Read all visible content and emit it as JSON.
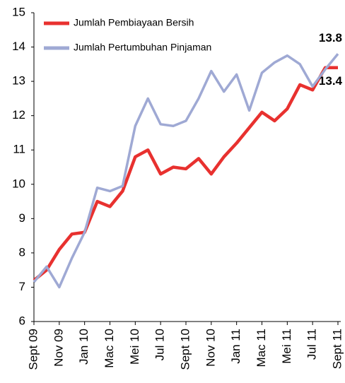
{
  "chart_data": {
    "type": "line",
    "categories": [
      "Sept 09",
      null,
      "Nov 09",
      null,
      "Jan 10",
      null,
      "Mac 10",
      null,
      "Mei 10",
      null,
      "Jul 10",
      null,
      "Sept 10",
      null,
      "Nov 10",
      null,
      "Jan 11",
      null,
      "Mac 11",
      null,
      "Mei 11",
      null,
      "Jul 11",
      null,
      "Sept 11"
    ],
    "series": [
      {
        "name": "Jumlah Pembiayaan Bersih",
        "color": "#e8312f",
        "label_color": "#e8312f",
        "values": [
          7.2,
          7.5,
          8.1,
          8.55,
          8.6,
          9.5,
          9.35,
          9.8,
          10.8,
          11.0,
          10.3,
          10.5,
          10.45,
          10.75,
          10.3,
          10.8,
          11.2,
          11.65,
          12.1,
          11.85,
          12.2,
          12.9,
          12.75,
          13.4,
          13.4
        ]
      },
      {
        "name": "Jumlah Pertumbuhan Pinjaman",
        "color": "#9fa9d4",
        "label_color": "#3a4f9b",
        "values": [
          7.15,
          7.6,
          7.0,
          7.85,
          8.6,
          9.9,
          9.8,
          9.95,
          11.7,
          12.5,
          11.75,
          11.7,
          11.85,
          12.5,
          13.3,
          12.7,
          13.2,
          12.15,
          13.25,
          13.55,
          13.75,
          13.5,
          12.85,
          13.35,
          13.8
        ]
      }
    ],
    "ylim": [
      6,
      15
    ],
    "yticks": [
      6,
      7,
      8,
      9,
      10,
      11,
      12,
      13,
      14,
      15
    ],
    "grid": false,
    "legend": "top-left"
  }
}
